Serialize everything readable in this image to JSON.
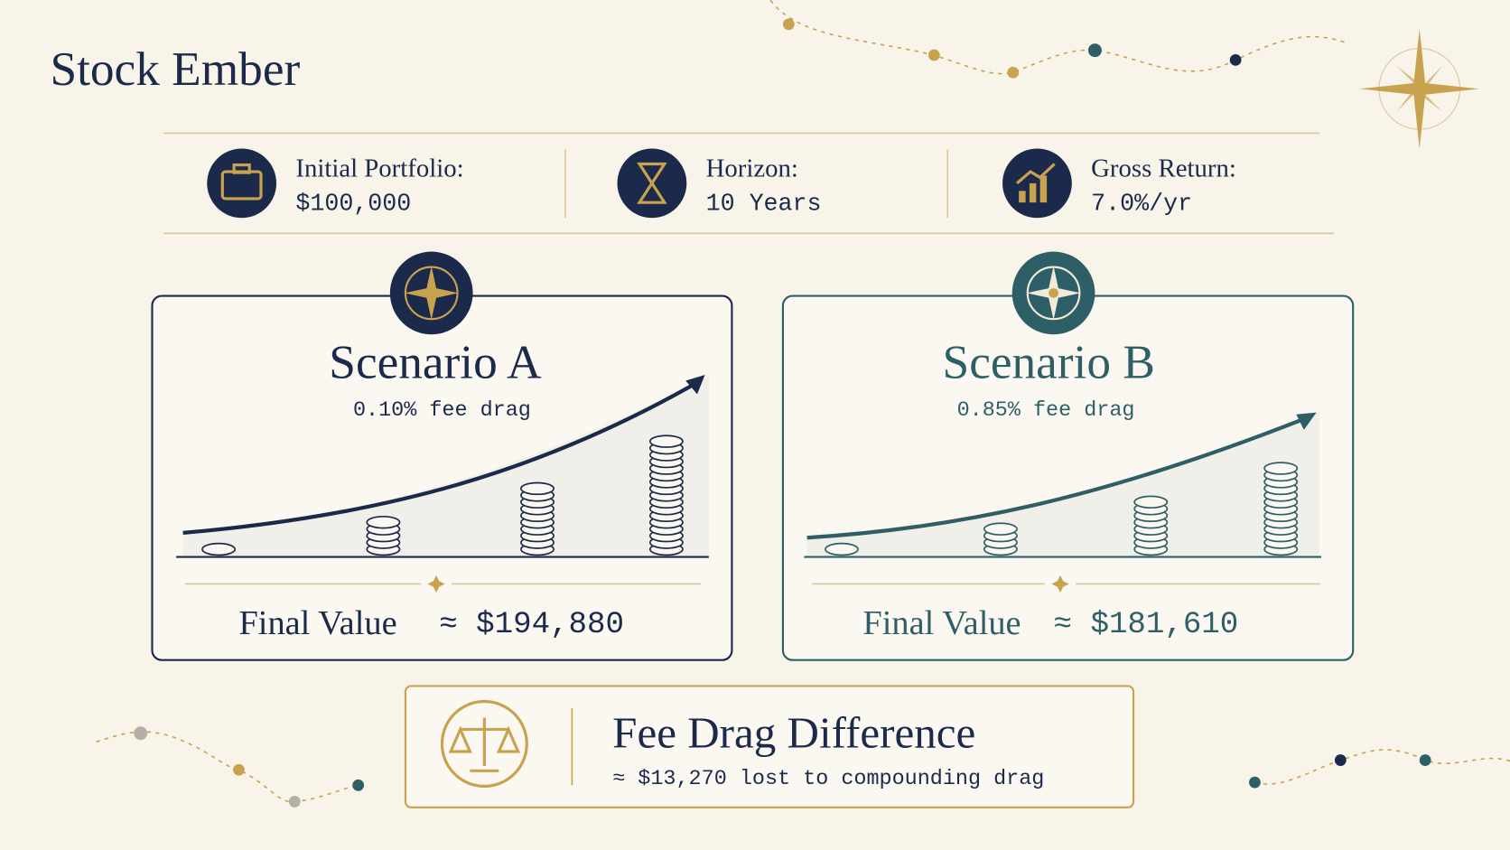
{
  "brand": "Stock Ember",
  "stats": [
    {
      "label": "Initial Portfolio:",
      "value": "$100,000"
    },
    {
      "label": "Horizon:",
      "value": "10 Years"
    },
    {
      "label": "Gross Return:",
      "value": "7.0%/yr"
    }
  ],
  "scenarios": [
    {
      "title": "Scenario A",
      "subtitle": "0.10% fee drag",
      "final_label": "Final Value",
      "final_value": "≈ $194,880"
    },
    {
      "title": "Scenario B",
      "subtitle": "0.85% fee drag",
      "final_label": "Final Value",
      "final_value": "≈ $181,610"
    }
  ],
  "difference": {
    "title": "Fee Drag Difference",
    "text": "≈ $13,270 lost to compounding drag"
  }
}
